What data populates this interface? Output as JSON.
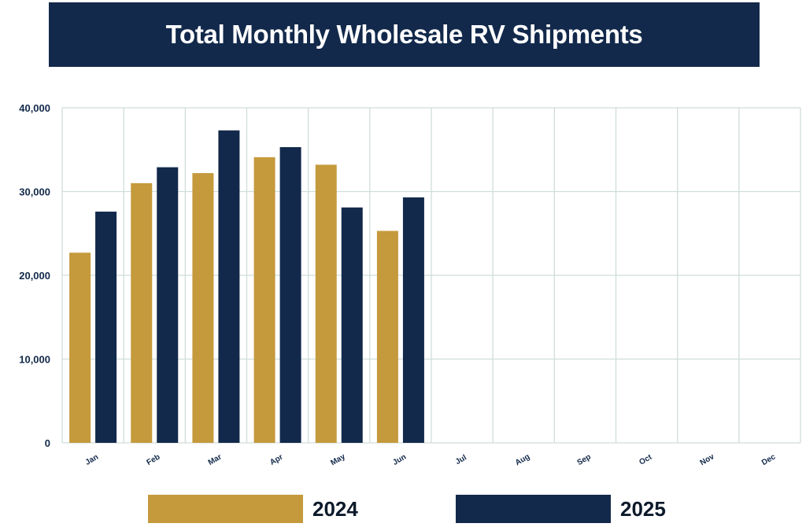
{
  "chart_data": {
    "type": "bar",
    "title": "Total Monthly Wholesale RV Shipments",
    "categories": [
      "Jan",
      "Feb",
      "Mar",
      "Apr",
      "May",
      "Jun",
      "Jul",
      "Aug",
      "Sep",
      "Oct",
      "Nov",
      "Dec"
    ],
    "series": [
      {
        "name": "2024",
        "color": "#c59a3c",
        "values": [
          22700,
          31000,
          32200,
          34100,
          33200,
          25300,
          null,
          null,
          null,
          null,
          null,
          null
        ]
      },
      {
        "name": "2025",
        "color": "#12294b",
        "values": [
          27600,
          32900,
          37300,
          35300,
          28100,
          29300,
          null,
          null,
          null,
          null,
          null,
          null
        ]
      }
    ],
    "ylim": [
      0,
      40000
    ],
    "yticks": [
      0,
      10000,
      20000,
      30000,
      40000
    ],
    "ytick_labels": [
      "0",
      "10,000",
      "20,000",
      "30,000",
      "40,000"
    ],
    "grid": true,
    "legend_position": "bottom"
  }
}
